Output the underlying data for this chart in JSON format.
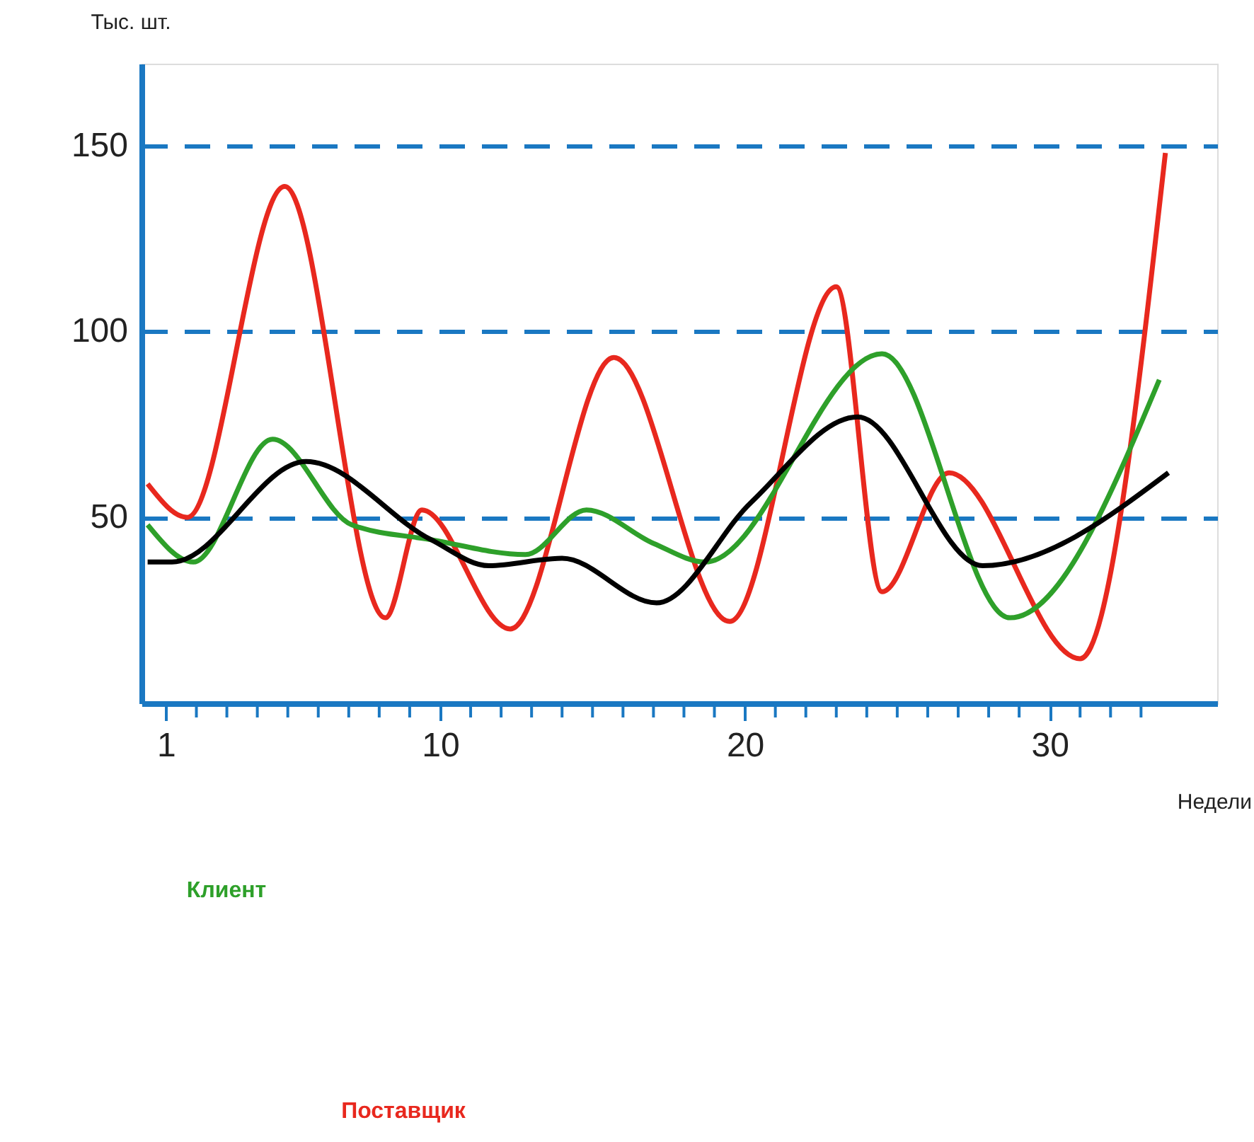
{
  "chart_data": {
    "type": "line",
    "xlabel": "Недели",
    "ylabel": "Тыс. шт.",
    "xlim": [
      0.2,
      35.5
    ],
    "ylim": [
      0,
      172
    ],
    "yticks": [
      50,
      100,
      150
    ],
    "xticks": [
      1,
      {
        "value": 2,
        "label": null
      },
      {
        "value": 3,
        "label": null
      },
      {
        "value": 4,
        "label": null
      },
      {
        "value": 5,
        "label": null
      },
      {
        "value": 6,
        "label": null
      },
      {
        "value": 7,
        "label": null
      },
      {
        "value": 8,
        "label": null
      },
      {
        "value": 9,
        "label": null
      },
      10,
      {
        "value": 11,
        "label": null
      },
      {
        "value": 12,
        "label": null
      },
      {
        "value": 13,
        "label": null
      },
      {
        "value": 14,
        "label": null
      },
      {
        "value": 15,
        "label": null
      },
      {
        "value": 16,
        "label": null
      },
      {
        "value": 17,
        "label": null
      },
      {
        "value": 18,
        "label": null
      },
      {
        "value": 19,
        "label": null
      },
      20,
      {
        "value": 21,
        "label": null
      },
      {
        "value": 22,
        "label": null
      },
      {
        "value": 23,
        "label": null
      },
      {
        "value": 24,
        "label": null
      },
      {
        "value": 25,
        "label": null
      },
      {
        "value": 26,
        "label": null
      },
      {
        "value": 27,
        "label": null
      },
      {
        "value": 28,
        "label": null
      },
      {
        "value": 29,
        "label": null
      },
      30,
      {
        "value": 31,
        "label": null
      },
      {
        "value": 32,
        "label": null
      },
      {
        "value": 33,
        "label": null
      }
    ],
    "grid": "y",
    "marker": "none",
    "line_style": "solid",
    "annotations": [
      "Клиент",
      "Поставщик"
    ],
    "series": [
      {
        "color": "#e8281e",
        "x": [
          0.4,
          1.7,
          4.9,
          8.2,
          9.4,
          12.3,
          15.7,
          19.5,
          23.0,
          24.5,
          26.7,
          31.0,
          33.8
        ],
        "values": [
          59,
          50,
          139,
          23,
          52,
          20,
          93,
          22,
          112,
          30,
          62,
          12,
          148
        ]
      },
      {
        "color": "#2ea02a",
        "x": [
          0.4,
          1.9,
          4.5,
          7.1,
          9.7,
          12.8,
          14.8,
          17.0,
          18.7,
          24.5,
          28.7,
          33.6
        ],
        "values": [
          48,
          38,
          71,
          48,
          44,
          40,
          52,
          43,
          38,
          94,
          23,
          87
        ]
      },
      {
        "color": "#000000",
        "x": [
          0.4,
          1.2,
          5.6,
          9.7,
          11.6,
          14.0,
          17.1,
          20.2,
          23.7,
          27.8,
          33.9
        ],
        "values": [
          38,
          38,
          65,
          44,
          37,
          39,
          27,
          54,
          77,
          37,
          62
        ]
      }
    ]
  }
}
